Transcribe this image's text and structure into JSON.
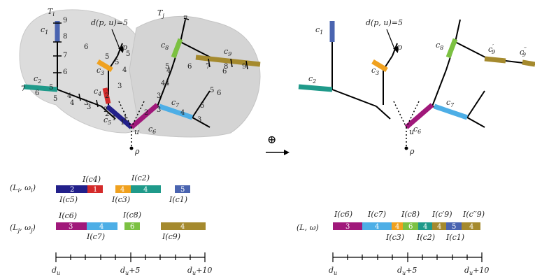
{
  "colors": {
    "c1": "#4a64b0",
    "c2": "#1f9a8a",
    "c3": "#f0a11f",
    "c4": "#d42a2a",
    "c5": "#22208a",
    "c6": "#a0187a",
    "c7": "#4daee6",
    "c8": "#7cc142",
    "c9": "#a58a2e",
    "region": "#dcdcdc"
  },
  "tree_labels": {
    "Ti": "T",
    "Ti_sub": "i",
    "Tj": "T",
    "Tj_sub": "j",
    "dist": "d(p, u)=5",
    "p": "p",
    "u": "u",
    "rho": "ρ",
    "c1": "c",
    "c1_sub": "1",
    "c2": "c",
    "c2_sub": "2",
    "c3": "c",
    "c3_sub": "3",
    "c4": "c",
    "c4_sub": "4",
    "c5": "c",
    "c5_sub": "5",
    "c6": "c",
    "c6_sub": "6",
    "c7": "c",
    "c7_sub": "7",
    "c8": "c",
    "c8_sub": "8",
    "c9": "c",
    "c9_sub": "9",
    "c9p": "c",
    "c9p_sub": "9",
    "c9p_mark": "′",
    "c9pp": "c",
    "c9pp_sub": "9",
    "c9pp_mark": "′′"
  },
  "oplus": "⊕",
  "seq_labels": {
    "Li": "(L",
    "Li_sub": "i",
    "Li_mid": ", ω",
    "Li_end": ")",
    "Lj": "(L",
    "Lj_sub": "j",
    "Lj_mid": ", ω",
    "Lj_end": ")",
    "L": "(L, ω)"
  },
  "sequences": {
    "Li_top": [
      "I(c4)",
      "I(c2)"
    ],
    "Li_bottom": [
      "I(c5)",
      "I(c3)",
      "I(c1)"
    ],
    "Lj_top": [
      "I(c6)",
      "I(c8)"
    ],
    "Lj_bottom": [
      "I(c7)",
      "I(c9)"
    ],
    "L_top": [
      "I(c6)",
      "I(c7)",
      "I(c8)",
      "I(c′9)",
      "I(c′′9)"
    ],
    "L_bottom": [
      "I(c3)",
      "I(c2)",
      "I(c1)"
    ]
  },
  "axis": {
    "start": "d",
    "start_sub": "u",
    "mid": "d",
    "mid_sub": "u",
    "mid_suffix": "+5",
    "end": "d",
    "end_sub": "u",
    "end_suffix": "+10"
  },
  "edge_weights_left": [
    "9",
    "8",
    "7",
    "6",
    "5",
    "4",
    "3",
    "2",
    "1",
    "7",
    "6",
    "5",
    "4",
    "3",
    "2",
    "1",
    "6",
    "5",
    "4",
    "5",
    "3",
    "2",
    "1",
    "2",
    "3",
    "4",
    "5",
    "4",
    "3",
    "6",
    "7",
    "8",
    "9",
    "6",
    "5",
    "7",
    "4",
    "3",
    "6",
    "5",
    "4",
    "5"
  ],
  "bar_weights": {
    "Li": [
      "2",
      "1",
      "4",
      "4",
      "5"
    ],
    "Lj": [
      "3",
      "4",
      "6",
      "4"
    ],
    "L": [
      "3",
      "4",
      "4",
      "6",
      "4",
      "4",
      "5",
      "4"
    ]
  }
}
